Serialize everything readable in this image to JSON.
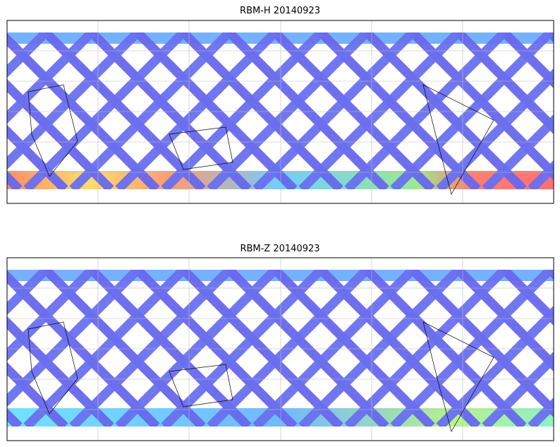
{
  "panels": [
    {
      "title": "RBM-H 20140923"
    },
    {
      "title": "RBM-Z 20140923"
    }
  ]
}
